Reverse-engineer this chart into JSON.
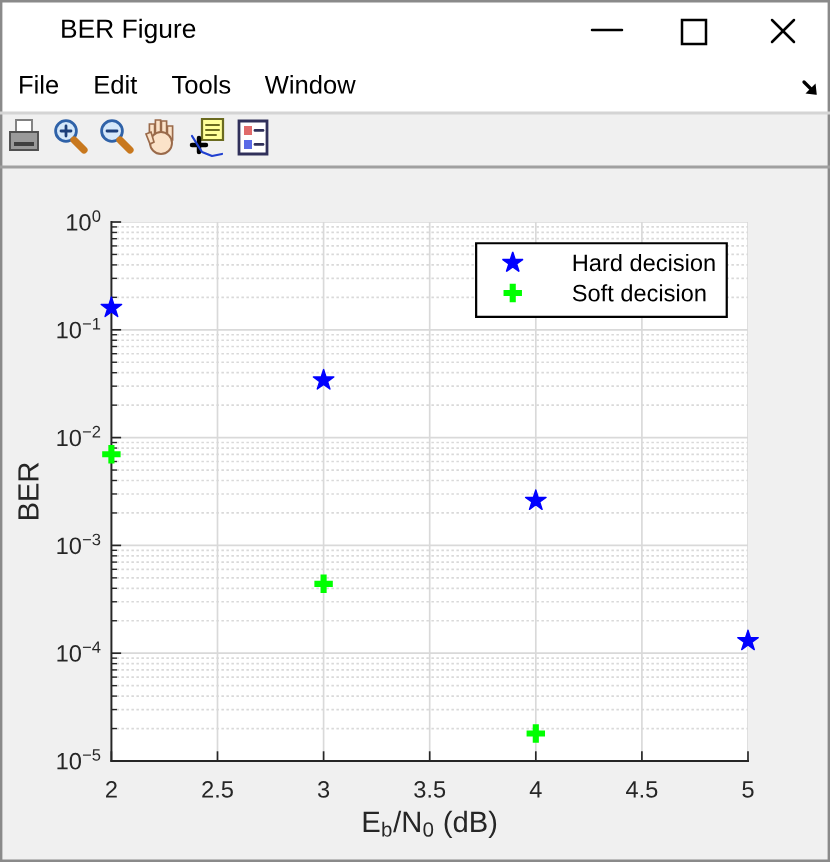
{
  "chart_data": {
    "type": "scatter",
    "title": "BER Figure",
    "xlabel": "E$_{b}$/N$_{0}$ (dB)",
    "ylabel": "BER",
    "annotations": [
      "File",
      "Edit",
      "Tools",
      "Window"
    ],
    "x": [
      2,
      3,
      4,
      5
    ],
    "series": [
      {
        "name": "Hard decision",
        "color": "#0000ff",
        "marker": "star",
        "values": [
          0.16,
          0.034,
          0.0026,
          0.00013
        ]
      },
      {
        "name": "Soft decision",
        "color": "#00ff00",
        "marker": "cross",
        "values": [
          0.007,
          0.00044,
          1.8e-05,
          null
        ]
      }
    ],
    "xlim": [
      2,
      5
    ],
    "xticks": [
      2,
      2.5,
      3,
      3.5,
      4,
      4.5,
      5
    ],
    "ylim": [
      1e-05,
      1
    ],
    "yticks": [
      {
        "value": 1e-05,
        "label": "10$^{−5}$"
      },
      {
        "value": 0.0001,
        "label": "10$^{−4}$"
      },
      {
        "value": 0.001,
        "label": "10$^{−3}$"
      },
      {
        "value": 0.01,
        "label": "10$^{−2}$"
      },
      {
        "value": 0.1,
        "label": "10$^{−1}$"
      },
      {
        "value": 1,
        "label": "10$^{0}$"
      }
    ],
    "log": true,
    "grid": true,
    "legend": "top right"
  }
}
